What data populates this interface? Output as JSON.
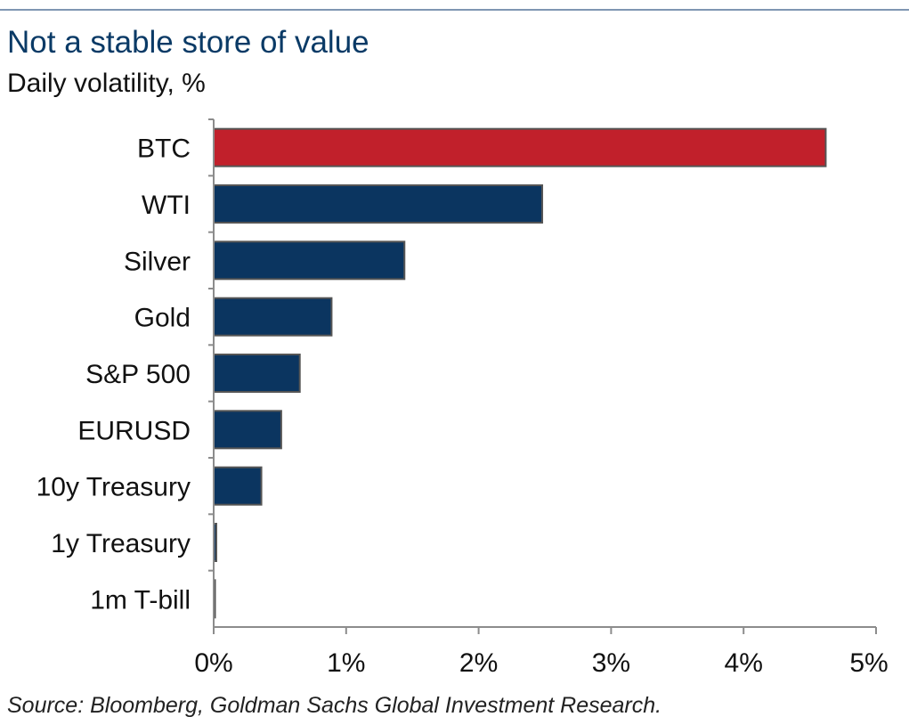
{
  "header": {
    "title": "Not a stable store of value",
    "subtitle": "Daily volatility, %"
  },
  "footer": {
    "source": "Source: Bloomberg, Goldman Sachs Global Investment Research."
  },
  "chart_data": {
    "type": "bar",
    "orientation": "horizontal",
    "title": "Not a stable store of value",
    "subtitle": "Daily volatility, %",
    "categories": [
      "BTC",
      "WTI",
      "Silver",
      "Gold",
      "S&P 500",
      "EURUSD",
      "10y Treasury",
      "1y Treasury",
      "1m T-bill"
    ],
    "values": [
      4.62,
      2.48,
      1.44,
      0.89,
      0.65,
      0.51,
      0.36,
      0.02,
      0.005
    ],
    "unit": "%",
    "xlim": [
      0,
      5
    ],
    "xticks": [
      0,
      1,
      2,
      3,
      4,
      5
    ],
    "xtick_labels": [
      "0%",
      "1%",
      "2%",
      "3%",
      "4%",
      "5%"
    ],
    "grid": false,
    "colors": {
      "highlight": "#c1202b",
      "default": "#0b3560",
      "bar_outline": "#555555",
      "axis": "#8c8c8c"
    },
    "highlight_category": "BTC"
  }
}
